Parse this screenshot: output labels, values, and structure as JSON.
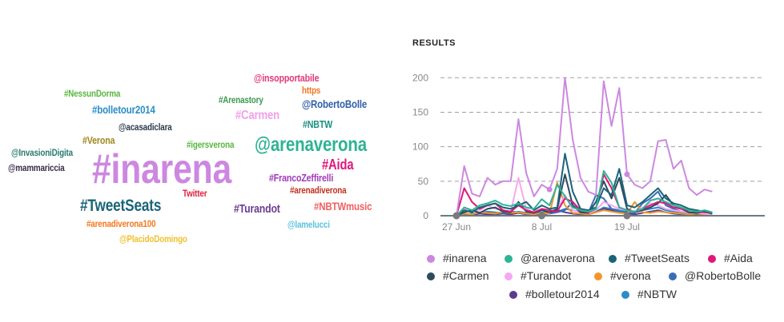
{
  "word_cloud": [
    {
      "text": "#inarena",
      "color": "#cc88e0",
      "size": 52
    },
    {
      "text": "@arenaverona",
      "color": "#2db394",
      "size": 25
    },
    {
      "text": "#TweetSeats",
      "color": "#1a6478",
      "size": 21
    },
    {
      "text": "#Aida",
      "color": "#e0177a",
      "size": 18
    },
    {
      "text": "#Carmen",
      "color": "#f2a0e8",
      "size": 16
    },
    {
      "text": "#Turandot",
      "color": "#6a3d8f",
      "size": 15
    },
    {
      "text": "@RobertoBolle",
      "color": "#3060a8",
      "size": 14
    },
    {
      "text": "#bolletour2014",
      "color": "#2a8cc8",
      "size": 14
    },
    {
      "text": "#NBTWmusic",
      "color": "#f06060",
      "size": 14
    },
    {
      "text": "#Verona",
      "color": "#a08820",
      "size": 13
    },
    {
      "text": "#NBTW",
      "color": "#1a9080",
      "size": 13
    },
    {
      "text": "@insopportabile",
      "color": "#e03a7a",
      "size": 13
    },
    {
      "text": "#FrancoZeffirelli",
      "color": "#a03ab8",
      "size": 13
    },
    {
      "text": "#NessunDorma",
      "color": "#58b840",
      "size": 12
    },
    {
      "text": "#Arenastory",
      "color": "#3a9a50",
      "size": 12
    },
    {
      "text": "@acasadiclara",
      "color": "#2a3a4a",
      "size": 12
    },
    {
      "text": "#igersverona",
      "color": "#58b840",
      "size": 12
    },
    {
      "text": "@InvasioniDigita",
      "color": "#2a7a70",
      "size": 12
    },
    {
      "text": "@mammariccia",
      "color": "#3a2a4a",
      "size": 12
    },
    {
      "text": "#arenadiverona",
      "color": "#c03020",
      "size": 12
    },
    {
      "text": "Twitter",
      "color": "#e02040",
      "size": 12
    },
    {
      "text": "https",
      "color": "#f07820",
      "size": 12
    },
    {
      "text": "#arenadiverona100",
      "color": "#f07820",
      "size": 12
    },
    {
      "text": "@PlacidoDomingo",
      "color": "#f0c030",
      "size": 12
    },
    {
      "text": "@lamelucci",
      "color": "#5ac0e0",
      "size": 12
    }
  ],
  "chart_data": {
    "type": "line",
    "title": "RESULTS",
    "ylim": [
      0,
      220
    ],
    "yticks": [
      0,
      50,
      100,
      150,
      200
    ],
    "x_tick_labels": [
      {
        "label": "27 Jun",
        "day": 0
      },
      {
        "label": "8 Jul",
        "day": 11
      },
      {
        "label": "19 Jul",
        "day": 22
      }
    ],
    "points_per_day": 3,
    "series": [
      {
        "name": "#inarena",
        "color": "#cc88e0",
        "values": [
          0,
          72,
          32,
          28,
          55,
          45,
          50,
          50,
          140,
          62,
          28,
          45,
          38,
          68,
          200,
          110,
          55,
          35,
          30,
          195,
          130,
          185,
          60,
          45,
          40,
          50,
          108,
          110,
          68,
          80,
          40,
          30,
          38,
          35
        ]
      },
      {
        "name": "@arenaverona",
        "color": "#2db394",
        "values": [
          0,
          12,
          8,
          15,
          18,
          22,
          16,
          14,
          18,
          12,
          10,
          24,
          15,
          45,
          28,
          12,
          8,
          6,
          10,
          65,
          48,
          12,
          8,
          6,
          10,
          22,
          25,
          20,
          15,
          12,
          8,
          6,
          8,
          5
        ]
      },
      {
        "name": "#TweetSeats",
        "color": "#1a6478",
        "values": [
          0,
          8,
          5,
          12,
          15,
          18,
          12,
          10,
          15,
          20,
          8,
          15,
          10,
          12,
          90,
          35,
          10,
          8,
          12,
          40,
          30,
          68,
          15,
          12,
          20,
          30,
          40,
          25,
          18,
          15,
          10,
          8,
          6,
          5
        ]
      },
      {
        "name": "#Aida",
        "color": "#e0177a",
        "values": [
          0,
          40,
          20,
          10,
          15,
          18,
          8,
          6,
          15,
          8,
          5,
          10,
          8,
          6,
          25,
          20,
          8,
          5,
          10,
          60,
          40,
          12,
          8,
          6,
          10,
          15,
          20,
          18,
          12,
          10,
          8,
          6,
          5,
          5
        ]
      },
      {
        "name": "#Carmen",
        "color": "#2c4a60",
        "values": [
          0,
          5,
          8,
          4,
          10,
          12,
          6,
          5,
          20,
          6,
          4,
          8,
          5,
          10,
          60,
          15,
          5,
          4,
          20,
          50,
          25,
          55,
          10,
          5,
          8,
          12,
          18,
          30,
          15,
          10,
          5,
          4,
          6,
          3
        ]
      },
      {
        "name": "#Turandot",
        "color": "#f6a8ef",
        "values": [
          0,
          10,
          6,
          8,
          15,
          10,
          8,
          6,
          55,
          10,
          5,
          8,
          6,
          10,
          30,
          8,
          5,
          4,
          8,
          20,
          15,
          10,
          8,
          5,
          12,
          18,
          15,
          10,
          8,
          6,
          5,
          4,
          3,
          2
        ]
      },
      {
        "name": "#verona",
        "color": "#f2962a",
        "values": [
          0,
          3,
          2,
          5,
          4,
          3,
          6,
          4,
          5,
          3,
          2,
          4,
          3,
          48,
          15,
          4,
          3,
          2,
          5,
          8,
          6,
          4,
          3,
          20,
          5,
          4,
          6,
          5,
          4,
          3,
          2,
          3,
          2,
          2
        ]
      },
      {
        "name": "@RobertoBolle",
        "color": "#3a6db8",
        "values": [
          0,
          2,
          3,
          4,
          5,
          3,
          4,
          6,
          5,
          3,
          2,
          4,
          3,
          5,
          8,
          20,
          6,
          4,
          30,
          25,
          10,
          6,
          5,
          4,
          18,
          25,
          35,
          15,
          10,
          6,
          5,
          4,
          3,
          2
        ]
      },
      {
        "name": "#bolletour2014",
        "color": "#5b3c8c",
        "values": [
          0,
          2,
          1,
          3,
          2,
          2,
          3,
          2,
          4,
          2,
          1,
          2,
          3,
          8,
          5,
          3,
          2,
          2,
          5,
          10,
          8,
          5,
          3,
          2,
          4,
          6,
          8,
          5,
          3,
          2,
          2,
          1,
          2,
          1
        ]
      },
      {
        "name": "#NBTW",
        "color": "#2a8cc8",
        "values": [
          0,
          3,
          2,
          4,
          6,
          5,
          4,
          3,
          6,
          4,
          3,
          5,
          4,
          6,
          10,
          8,
          5,
          4,
          6,
          12,
          10,
          8,
          6,
          5,
          8,
          10,
          12,
          8,
          6,
          5,
          4,
          3,
          3,
          2
        ]
      }
    ],
    "grid": true,
    "legend_position": "bottom"
  }
}
